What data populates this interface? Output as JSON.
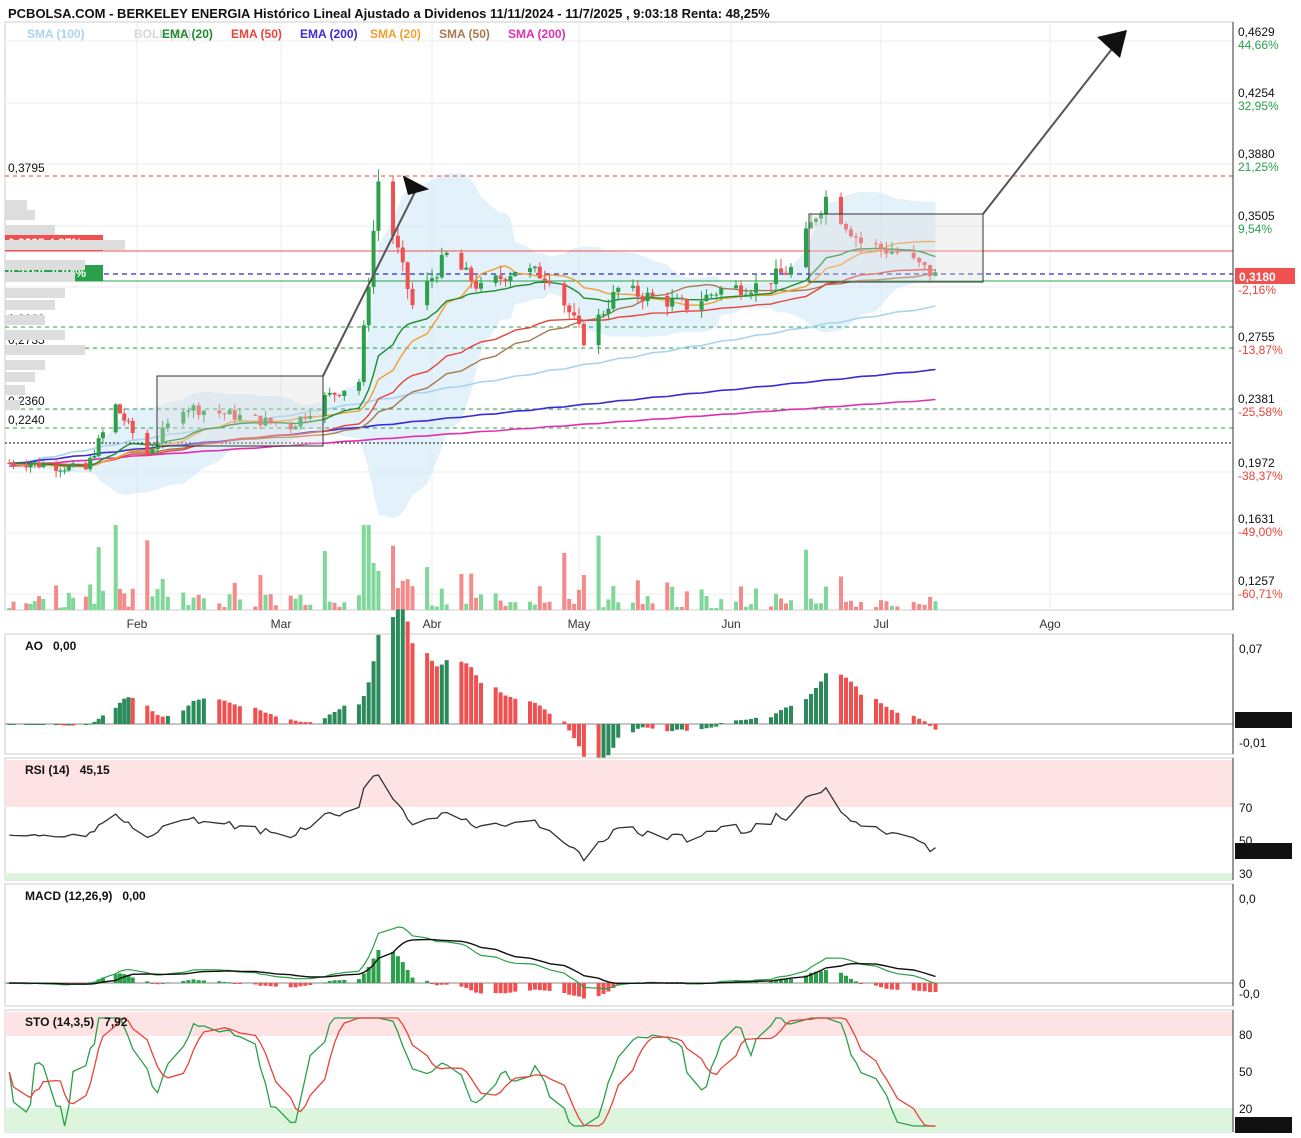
{
  "title": "PCBOLSA.COM - BERKELEY ENERGIA Histórico Lineal Ajustado a Dividenos 11/11/2024 - 11/7/2025 , 9:03:18 Renta: 48,25%",
  "indicators": [
    {
      "name": "SMA",
      "param": "(100)",
      "color": "#a8d4f0"
    },
    {
      "name": "BOLL",
      "param": "(20)",
      "color": "#d8d8d8"
    },
    {
      "name": "EMA",
      "param": "(20)",
      "color": "#1f8b2e"
    },
    {
      "name": "EMA",
      "param": "(50)",
      "color": "#e8443a"
    },
    {
      "name": "EMA",
      "param": "(200)",
      "color": "#3a2bd6"
    },
    {
      "name": "SMA",
      "param": "(20)",
      "color": "#f0a030"
    },
    {
      "name": "SMA",
      "param": "(50)",
      "color": "#a87a50"
    },
    {
      "name": "SMA",
      "param": "(200)",
      "color": "#e030b0"
    }
  ],
  "price_axis": [
    {
      "value": "0,4629",
      "pct": "44,66%",
      "pos": true
    },
    {
      "value": "0,4254",
      "pct": "32,95%",
      "pos": true
    },
    {
      "value": "0,3880",
      "pct": "21,25%",
      "pos": true
    },
    {
      "value": "0,3505",
      "pct": "9,54%",
      "pos": true
    },
    {
      "value": "0,2755",
      "pct": "-13,87%",
      "pos": false
    },
    {
      "value": "0,2381",
      "pct": "-25,58%",
      "pos": false
    },
    {
      "value": "0,1972",
      "pct": "-38,37%",
      "pos": false
    },
    {
      "value": "0,1631",
      "pct": "-49,00%",
      "pos": false
    },
    {
      "value": "0,1257",
      "pct": "-60,71%",
      "pos": false
    }
  ],
  "current_price": {
    "value": "0,3180",
    "pct": "-2,16%"
  },
  "levels": [
    {
      "label": "0,3795",
      "type": "resistance"
    },
    {
      "label": "0,2860",
      "type": "support"
    },
    {
      "label": "0,2735",
      "type": "support"
    },
    {
      "label": "0,2360",
      "type": "support"
    },
    {
      "label": "0,2240",
      "type": "support"
    }
  ],
  "boxes": [
    {
      "value": "0,3335",
      "pct": "4,87%",
      "color": "#f05050"
    },
    {
      "value": "0,3150",
      "pct": "-0,94%",
      "color": "#2aa04a"
    }
  ],
  "months": [
    "Feb",
    "Mar",
    "Abr",
    "May",
    "Jun",
    "Jul",
    "Ago"
  ],
  "panels": {
    "ao": {
      "label": "AO",
      "value": "0,00",
      "axis": [
        "0,07",
        "-0,01"
      ],
      "current": "0,005"
    },
    "rsi": {
      "label": "RSI (14)",
      "value": "45,15",
      "axis": [
        "70",
        "50",
        "30"
      ],
      "current": "45,154"
    },
    "macd": {
      "label": "MACD (12,26,9)",
      "value": "0,00",
      "axis": [
        "0,0",
        "0",
        "-0,0"
      ]
    },
    "sto": {
      "label": "STO (14,3,5)",
      "value": "7,92",
      "axis": [
        "80",
        "50",
        "20"
      ],
      "current": "7,925"
    }
  },
  "chart_data": {
    "type": "line",
    "title": "PCBOLSA.COM - BERKELEY ENERGIA Histórico Lineal Ajustado a Dividenos 11/11/2024 - 11/7/2025 , 9:03:18 Renta: 48,25%",
    "x_range": [
      "2025-01-01",
      "2025-08-20"
    ],
    "ylim": [
      0.118,
      0.47
    ],
    "price_series": [
      {
        "date": "2025-01-06",
        "close": 0.206
      },
      {
        "date": "2025-01-13",
        "close": 0.204
      },
      {
        "date": "2025-01-20",
        "close": 0.202
      },
      {
        "date": "2025-01-27",
        "close": 0.24
      },
      {
        "date": "2025-02-03",
        "close": 0.212
      },
      {
        "date": "2025-02-10",
        "close": 0.24
      },
      {
        "date": "2025-02-17",
        "close": 0.236
      },
      {
        "date": "2025-02-24",
        "close": 0.232
      },
      {
        "date": "2025-03-03",
        "close": 0.228
      },
      {
        "date": "2025-03-10",
        "close": 0.245
      },
      {
        "date": "2025-03-17",
        "close": 0.255
      },
      {
        "date": "2025-03-21",
        "close": 0.375
      },
      {
        "date": "2025-03-28",
        "close": 0.3
      },
      {
        "date": "2025-04-04",
        "close": 0.33
      },
      {
        "date": "2025-04-11",
        "close": 0.31
      },
      {
        "date": "2025-04-18",
        "close": 0.322
      },
      {
        "date": "2025-04-25",
        "close": 0.318
      },
      {
        "date": "2025-05-02",
        "close": 0.28
      },
      {
        "date": "2025-05-09",
        "close": 0.31
      },
      {
        "date": "2025-05-16",
        "close": 0.305
      },
      {
        "date": "2025-05-23",
        "close": 0.3
      },
      {
        "date": "2025-05-30",
        "close": 0.31
      },
      {
        "date": "2025-06-06",
        "close": 0.312
      },
      {
        "date": "2025-06-13",
        "close": 0.322
      },
      {
        "date": "2025-06-18",
        "close": 0.355
      },
      {
        "date": "2025-06-20",
        "close": 0.365
      },
      {
        "date": "2025-06-27",
        "close": 0.338
      },
      {
        "date": "2025-07-04",
        "close": 0.332
      },
      {
        "date": "2025-07-11",
        "close": 0.318
      }
    ]
  }
}
